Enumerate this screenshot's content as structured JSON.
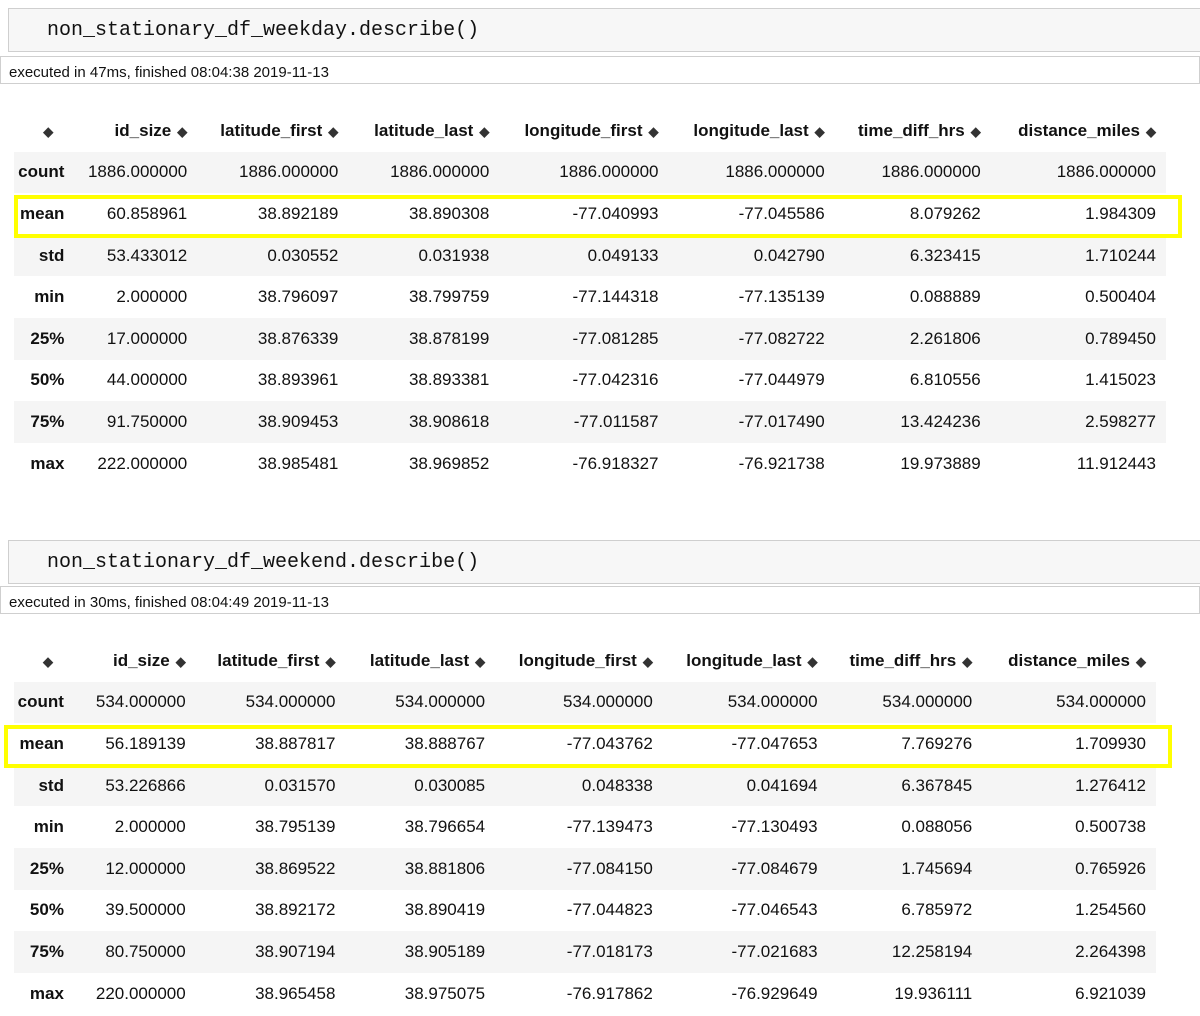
{
  "cells": [
    {
      "code": "non_stationary_df_weekday.describe()",
      "exec_info": "executed in 47ms, finished 08:04:38 2019-11-13",
      "columns": [
        "id_size",
        "latitude_first",
        "latitude_last",
        "longitude_first",
        "longitude_last",
        "time_diff_hrs",
        "distance_miles"
      ],
      "rows": [
        {
          "label": "count",
          "values": [
            "1886.000000",
            "1886.000000",
            "1886.000000",
            "1886.000000",
            "1886.000000",
            "1886.000000",
            "1886.000000"
          ]
        },
        {
          "label": "mean",
          "values": [
            "60.858961",
            "38.892189",
            "38.890308",
            "-77.040993",
            "-77.045586",
            "8.079262",
            "1.984309"
          ]
        },
        {
          "label": "std",
          "values": [
            "53.433012",
            "0.030552",
            "0.031938",
            "0.049133",
            "0.042790",
            "6.323415",
            "1.710244"
          ]
        },
        {
          "label": "min",
          "values": [
            "2.000000",
            "38.796097",
            "38.799759",
            "-77.144318",
            "-77.135139",
            "0.088889",
            "0.500404"
          ]
        },
        {
          "label": "25%",
          "values": [
            "17.000000",
            "38.876339",
            "38.878199",
            "-77.081285",
            "-77.082722",
            "2.261806",
            "0.789450"
          ]
        },
        {
          "label": "50%",
          "values": [
            "44.000000",
            "38.893961",
            "38.893381",
            "-77.042316",
            "-77.044979",
            "6.810556",
            "1.415023"
          ]
        },
        {
          "label": "75%",
          "values": [
            "91.750000",
            "38.909453",
            "38.908618",
            "-77.011587",
            "-77.017490",
            "13.424236",
            "2.598277"
          ]
        },
        {
          "label": "max",
          "values": [
            "222.000000",
            "38.985481",
            "38.969852",
            "-76.918327",
            "-76.921738",
            "19.973889",
            "11.912443"
          ]
        }
      ]
    },
    {
      "code": "non_stationary_df_weekend.describe()",
      "exec_info": "executed in 30ms, finished 08:04:49 2019-11-13",
      "columns": [
        "id_size",
        "latitude_first",
        "latitude_last",
        "longitude_first",
        "longitude_last",
        "time_diff_hrs",
        "distance_miles"
      ],
      "rows": [
        {
          "label": "count",
          "values": [
            "534.000000",
            "534.000000",
            "534.000000",
            "534.000000",
            "534.000000",
            "534.000000",
            "534.000000"
          ]
        },
        {
          "label": "mean",
          "values": [
            "56.189139",
            "38.887817",
            "38.888767",
            "-77.043762",
            "-77.047653",
            "7.769276",
            "1.709930"
          ]
        },
        {
          "label": "std",
          "values": [
            "53.226866",
            "0.031570",
            "0.030085",
            "0.048338",
            "0.041694",
            "6.367845",
            "1.276412"
          ]
        },
        {
          "label": "min",
          "values": [
            "2.000000",
            "38.795139",
            "38.796654",
            "-77.139473",
            "-77.130493",
            "0.088056",
            "0.500738"
          ]
        },
        {
          "label": "25%",
          "values": [
            "12.000000",
            "38.869522",
            "38.881806",
            "-77.084150",
            "-77.084679",
            "1.745694",
            "0.765926"
          ]
        },
        {
          "label": "50%",
          "values": [
            "39.500000",
            "38.892172",
            "38.890419",
            "-77.044823",
            "-77.046543",
            "6.785972",
            "1.254560"
          ]
        },
        {
          "label": "75%",
          "values": [
            "80.750000",
            "38.907194",
            "38.905189",
            "-77.018173",
            "-77.021683",
            "12.258194",
            "2.264398"
          ]
        },
        {
          "label": "max",
          "values": [
            "220.000000",
            "38.965458",
            "38.975075",
            "-76.917862",
            "-76.929649",
            "19.936111",
            "6.921039"
          ]
        }
      ]
    }
  ],
  "sort_icon": "sort-arrows-icon",
  "highlight_color": "#ffff00"
}
